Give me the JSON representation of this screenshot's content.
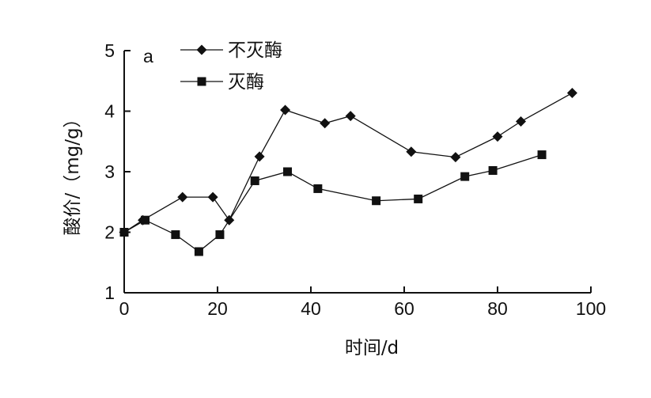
{
  "chart_data": {
    "type": "line",
    "panel_label": "a",
    "xlabel": "时间/d",
    "ylabel": "酸价/（mg/g）",
    "xlim": [
      0,
      100
    ],
    "ylim": [
      1,
      5
    ],
    "xticks": [
      0,
      20,
      40,
      60,
      80,
      100
    ],
    "yticks": [
      1,
      2,
      3,
      4,
      5
    ],
    "grid": false,
    "legend_position": "top-left",
    "series": [
      {
        "name": "不灭酶",
        "marker": "diamond",
        "color": "#111111",
        "points": [
          [
            0,
            2.0
          ],
          [
            4,
            2.2
          ],
          [
            12.5,
            2.58
          ],
          [
            19,
            2.58
          ],
          [
            22.5,
            2.2
          ],
          [
            29,
            3.25
          ],
          [
            34.5,
            4.02
          ],
          [
            43,
            3.8
          ],
          [
            48.5,
            3.92
          ],
          [
            61.5,
            3.33
          ],
          [
            71,
            3.24
          ],
          [
            80,
            3.58
          ],
          [
            85,
            3.83
          ],
          [
            96,
            4.3
          ]
        ]
      },
      {
        "name": "灭酶",
        "marker": "square",
        "color": "#111111",
        "points": [
          [
            0,
            2.0
          ],
          [
            4.5,
            2.2
          ],
          [
            11,
            1.96
          ],
          [
            16,
            1.68
          ],
          [
            20.5,
            1.96
          ],
          [
            28,
            2.85
          ],
          [
            35,
            3.0
          ],
          [
            41.5,
            2.72
          ],
          [
            54,
            2.52
          ],
          [
            63,
            2.55
          ],
          [
            73,
            2.92
          ],
          [
            79,
            3.02
          ],
          [
            89.5,
            3.28
          ]
        ]
      }
    ]
  }
}
